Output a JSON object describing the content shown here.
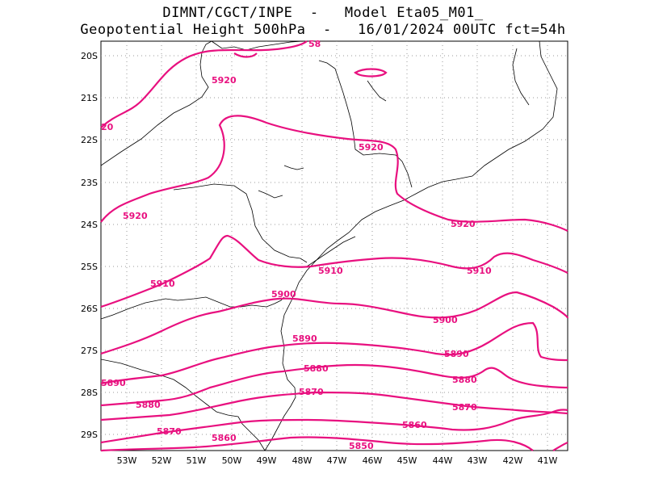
{
  "header": {
    "line1": "DIMNT/CGCT/INPE  -   Model Eta05_M01_",
    "line2": "Geopotential Height 500hPa  -   16/01/2024 00UTC fct=54h"
  },
  "map": {
    "lon_range": [
      -53.6,
      -40.5
    ],
    "lat_range": [
      -29.4,
      -19.6
    ],
    "x_ticks": [
      "53W",
      "52W",
      "51W",
      "50W",
      "49W",
      "48W",
      "47W",
      "46W",
      "45W",
      "44W",
      "43W",
      "42W",
      "41W"
    ],
    "y_ticks": [
      "20S",
      "21S",
      "22S",
      "23S",
      "24S",
      "25S",
      "26S",
      "27S",
      "28S",
      "29S"
    ],
    "gridlines": "dotted",
    "contour_color": "#e8107f",
    "contour_labels": [
      {
        "text": "5920"
      },
      {
        "text": "20"
      },
      {
        "text": "5920"
      },
      {
        "text": "5920"
      },
      {
        "text": "5920"
      },
      {
        "text": "5910"
      },
      {
        "text": "5910"
      },
      {
        "text": "5910"
      },
      {
        "text": "5900"
      },
      {
        "text": "5900"
      },
      {
        "text": "5890"
      },
      {
        "text": "5890"
      },
      {
        "text": "5890"
      },
      {
        "text": "5880"
      },
      {
        "text": "5880"
      },
      {
        "text": "5880"
      },
      {
        "text": "5870"
      },
      {
        "text": "5870"
      },
      {
        "text": "5870"
      },
      {
        "text": "5860"
      },
      {
        "text": "5860"
      },
      {
        "text": "5850"
      },
      {
        "text": "58"
      }
    ]
  }
}
